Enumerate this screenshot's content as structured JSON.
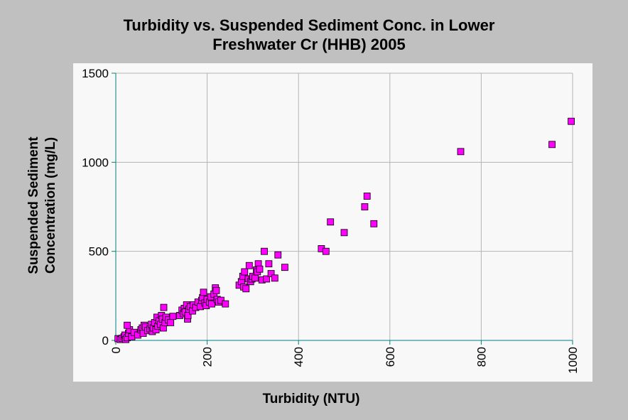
{
  "chart_data": {
    "type": "scatter",
    "title_line1": "Turbidity vs. Suspended Sediment Conc. in Lower",
    "title_line2": "Freshwater Cr (HHB) 2005",
    "xlabel": "Turbidity (NTU)",
    "ylabel_line1": "Suspended Sediment",
    "ylabel_line2": "Concentration (mg/L)",
    "xlim": [
      0,
      1000
    ],
    "ylim": [
      0,
      1500
    ],
    "x_ticks": [
      0,
      200,
      400,
      600,
      800,
      1000
    ],
    "y_ticks": [
      0,
      500,
      1000,
      1500
    ],
    "grid": true,
    "marker_color": "#ff00ff",
    "marker_edge_color": "#000000",
    "series": [
      {
        "points": [
          [
            5,
            10
          ],
          [
            10,
            5
          ],
          [
            14,
            12
          ],
          [
            18,
            20
          ],
          [
            20,
            30
          ],
          [
            22,
            5
          ],
          [
            25,
            15
          ],
          [
            28,
            40
          ],
          [
            30,
            60
          ],
          [
            25,
            85
          ],
          [
            35,
            20
          ],
          [
            40,
            45
          ],
          [
            48,
            30
          ],
          [
            55,
            60
          ],
          [
            58,
            70
          ],
          [
            60,
            40
          ],
          [
            62,
            85
          ],
          [
            65,
            75
          ],
          [
            70,
            55
          ],
          [
            75,
            65
          ],
          [
            78,
            90
          ],
          [
            80,
            50
          ],
          [
            82,
            70
          ],
          [
            85,
            100
          ],
          [
            88,
            60
          ],
          [
            90,
            130
          ],
          [
            92,
            80
          ],
          [
            95,
            110
          ],
          [
            98,
            90
          ],
          [
            100,
            140
          ],
          [
            102,
            120
          ],
          [
            104,
            70
          ],
          [
            105,
            185
          ],
          [
            108,
            100
          ],
          [
            110,
            130
          ],
          [
            115,
            115
          ],
          [
            120,
            100
          ],
          [
            125,
            135
          ],
          [
            140,
            140
          ],
          [
            145,
            170
          ],
          [
            148,
            150
          ],
          [
            150,
            180
          ],
          [
            152,
            160
          ],
          [
            155,
            200
          ],
          [
            157,
            120
          ],
          [
            158,
            140
          ],
          [
            160,
            175
          ],
          [
            163,
            190
          ],
          [
            168,
            165
          ],
          [
            170,
            200
          ],
          [
            175,
            185
          ],
          [
            180,
            215
          ],
          [
            185,
            190
          ],
          [
            188,
            225
          ],
          [
            190,
            240
          ],
          [
            192,
            270
          ],
          [
            195,
            210
          ],
          [
            198,
            195
          ],
          [
            200,
            230
          ],
          [
            205,
            215
          ],
          [
            208,
            245
          ],
          [
            210,
            205
          ],
          [
            215,
            260
          ],
          [
            218,
            295
          ],
          [
            220,
            280
          ],
          [
            222,
            230
          ],
          [
            225,
            215
          ],
          [
            230,
            225
          ],
          [
            240,
            205
          ],
          [
            270,
            310
          ],
          [
            275,
            330
          ],
          [
            278,
            360
          ],
          [
            280,
            300
          ],
          [
            282,
            385
          ],
          [
            285,
            290
          ],
          [
            290,
            345
          ],
          [
            292,
            420
          ],
          [
            295,
            330
          ],
          [
            298,
            345
          ],
          [
            300,
            360
          ],
          [
            305,
            350
          ],
          [
            308,
            395
          ],
          [
            310,
            385
          ],
          [
            312,
            430
          ],
          [
            315,
            400
          ],
          [
            320,
            340
          ],
          [
            325,
            500
          ],
          [
            330,
            345
          ],
          [
            335,
            430
          ],
          [
            340,
            375
          ],
          [
            348,
            350
          ],
          [
            355,
            480
          ],
          [
            370,
            410
          ],
          [
            450,
            515
          ],
          [
            460,
            500
          ],
          [
            470,
            665
          ],
          [
            500,
            605
          ],
          [
            545,
            750
          ],
          [
            550,
            810
          ],
          [
            565,
            655
          ],
          [
            755,
            1060
          ],
          [
            955,
            1100
          ],
          [
            997,
            1230
          ]
        ]
      }
    ]
  }
}
